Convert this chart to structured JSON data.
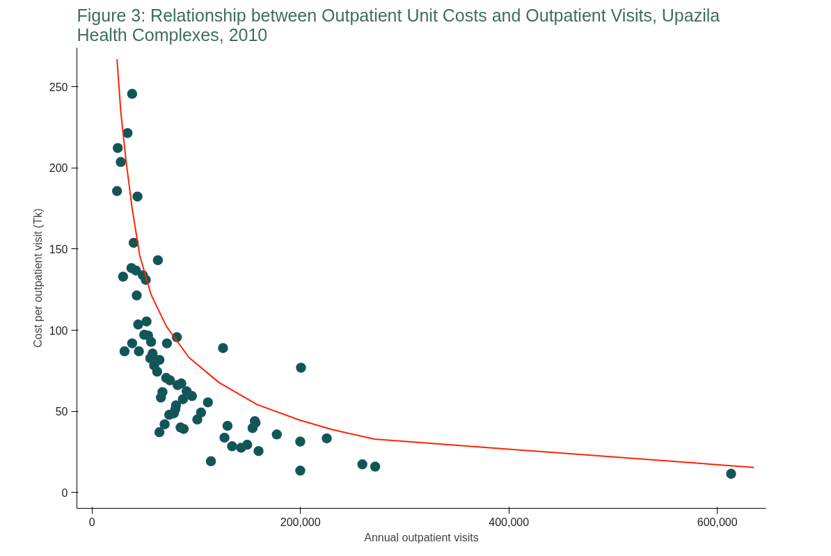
{
  "chart_data": {
    "type": "scatter",
    "title": "Figure 3: Relationship between Outpatient Unit Costs and Outpatient Visits, Upazila Health Complexes, 2010",
    "xlabel": "Annual outpatient visits",
    "ylabel": "Cost per outpatient visit (Tk)",
    "xlim": [
      -14500,
      646600
    ],
    "ylim": [
      -9.7,
      274
    ],
    "xticks": [
      {
        "value": 0,
        "label": "0"
      },
      {
        "value": 200000,
        "label": "200,000"
      },
      {
        "value": 400000,
        "label": "400,000"
      },
      {
        "value": 600000,
        "label": "600,000"
      }
    ],
    "yticks": [
      0,
      50,
      100,
      150,
      200,
      250
    ],
    "grid": false,
    "series": [
      {
        "marker": "circle",
        "color": "#0e5a4a",
        "x": [
          38500,
          34100,
          24700,
          27600,
          24000,
          43600,
          40000,
          63200,
          37800,
          42100,
          29800,
          48700,
          51600,
          42900,
          44300,
          52300,
          50100,
          53800,
          56700,
          71900,
          81400,
          38500,
          31200,
          45000,
          58100,
          55900,
          64700,
          59600,
          62500,
          125700,
          71200,
          74800,
          82100,
          85700,
          90800,
          95900,
          87200,
          67600,
          66100,
          111200,
          80600,
          79900,
          78500,
          74100,
          104600,
          101000,
          69700,
          64700,
          85000,
          87900,
          130000,
          200500,
          156200,
          156900,
          154000,
          127100,
          134400,
          143100,
          148900,
          159800,
          177300,
          199800,
          225200,
          199800,
          114100,
          259400,
          271700,
          613200
        ],
        "values": [
          245.6,
          221.4,
          212.2,
          203.6,
          185.7,
          182.3,
          153.8,
          143.1,
          138.3,
          136.8,
          133.0,
          133.9,
          131.0,
          121.4,
          103.5,
          105.4,
          97.2,
          96.7,
          92.8,
          91.9,
          95.7,
          91.9,
          87.0,
          87.0,
          85.6,
          82.7,
          81.7,
          78.3,
          74.5,
          89.0,
          70.6,
          69.1,
          66.2,
          67.2,
          62.4,
          59.5,
          57.5,
          61.9,
          58.5,
          55.6,
          53.7,
          51.3,
          48.8,
          47.9,
          49.3,
          45.0,
          42.1,
          37.2,
          40.1,
          39.2,
          41.1,
          76.9,
          44.0,
          43.0,
          39.7,
          33.8,
          28.5,
          27.6,
          29.5,
          25.6,
          35.8,
          31.4,
          33.4,
          13.5,
          19.3,
          17.4,
          16.0,
          11.6
        ]
      },
      {
        "type": "line",
        "color": "#ff2200",
        "x": [
          24000,
          27600,
          32700,
          38500,
          45800,
          56700,
          71200,
          93000,
          122000,
          158400,
          199800,
          231000,
          270900,
          635000
        ],
        "values": [
          266.9,
          234.5,
          204.1,
          175.0,
          146.0,
          121.9,
          102.5,
          83.2,
          67.7,
          54.2,
          44.5,
          38.7,
          32.9,
          15.5
        ]
      }
    ]
  }
}
